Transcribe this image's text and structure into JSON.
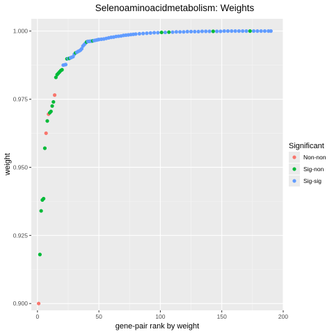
{
  "chart_data": {
    "type": "scatter",
    "title": "Selenoaminoacidmetabolism: Weights",
    "xlabel": "gene-pair rank by weight",
    "ylabel": "weight",
    "xlim": [
      -5,
      200
    ],
    "ylim": [
      0.8975,
      1.0045
    ],
    "x_ticks": [
      0,
      50,
      100,
      150,
      200
    ],
    "x_tick_labels": [
      "0",
      "50",
      "100",
      "150",
      "200"
    ],
    "y_ticks": [
      0.9,
      0.925,
      0.95,
      0.975,
      1.0
    ],
    "y_tick_labels": [
      "0.900",
      "0.925",
      "0.950",
      "0.975",
      "1.000"
    ],
    "grid": true,
    "legend": {
      "title": "Significant",
      "position": "right",
      "entries": [
        {
          "label": "Non-non",
          "color": "#F8766D"
        },
        {
          "label": "Sig-non",
          "color": "#00BA38"
        },
        {
          "label": "Sig-sig",
          "color": "#619CFF"
        }
      ]
    },
    "colors": {
      "Non-non": "#F8766D",
      "Sig-non": "#00BA38",
      "Sig-sig": "#619CFF"
    },
    "points": [
      {
        "x": 1,
        "y": 0.9,
        "group": "Non-non"
      },
      {
        "x": 2,
        "y": 0.918,
        "group": "Sig-non"
      },
      {
        "x": 3,
        "y": 0.934,
        "group": "Sig-non"
      },
      {
        "x": 4,
        "y": 0.938,
        "group": "Sig-non"
      },
      {
        "x": 5,
        "y": 0.9385,
        "group": "Sig-non"
      },
      {
        "x": 6,
        "y": 0.957,
        "group": "Sig-non"
      },
      {
        "x": 7,
        "y": 0.9625,
        "group": "Non-non"
      },
      {
        "x": 8,
        "y": 0.967,
        "group": "Sig-non"
      },
      {
        "x": 9,
        "y": 0.9695,
        "group": "Non-non"
      },
      {
        "x": 10,
        "y": 0.97,
        "group": "Sig-non"
      },
      {
        "x": 11,
        "y": 0.9705,
        "group": "Sig-non"
      },
      {
        "x": 12,
        "y": 0.9725,
        "group": "Sig-non"
      },
      {
        "x": 13,
        "y": 0.974,
        "group": "Sig-non"
      },
      {
        "x": 14,
        "y": 0.9765,
        "group": "Non-non"
      },
      {
        "x": 15,
        "y": 0.983,
        "group": "Sig-non"
      },
      {
        "x": 16,
        "y": 0.984,
        "group": "Sig-non"
      },
      {
        "x": 17,
        "y": 0.9845,
        "group": "Sig-non"
      },
      {
        "x": 18,
        "y": 0.985,
        "group": "Sig-non"
      },
      {
        "x": 19,
        "y": 0.9855,
        "group": "Sig-non"
      },
      {
        "x": 20,
        "y": 0.9858,
        "group": "Sig-non"
      },
      {
        "x": 21,
        "y": 0.9875,
        "group": "Sig-sig"
      },
      {
        "x": 22,
        "y": 0.9876,
        "group": "Sig-sig"
      },
      {
        "x": 23,
        "y": 0.9877,
        "group": "Sig-sig"
      },
      {
        "x": 24,
        "y": 0.9898,
        "group": "Sig-non"
      },
      {
        "x": 25,
        "y": 0.9899,
        "group": "Sig-sig"
      },
      {
        "x": 26,
        "y": 0.99,
        "group": "Sig-non"
      },
      {
        "x": 27,
        "y": 0.9902,
        "group": "Sig-sig"
      },
      {
        "x": 28,
        "y": 0.9904,
        "group": "Sig-sig"
      },
      {
        "x": 29,
        "y": 0.9906,
        "group": "Sig-sig"
      },
      {
        "x": 30,
        "y": 0.9915,
        "group": "Sig-sig"
      },
      {
        "x": 31,
        "y": 0.992,
        "group": "Sig-non"
      },
      {
        "x": 32,
        "y": 0.9922,
        "group": "Sig-sig"
      },
      {
        "x": 33,
        "y": 0.9925,
        "group": "Sig-sig"
      },
      {
        "x": 34,
        "y": 0.9927,
        "group": "Sig-sig"
      },
      {
        "x": 35,
        "y": 0.993,
        "group": "Sig-sig"
      },
      {
        "x": 36,
        "y": 0.9935,
        "group": "Sig-sig"
      },
      {
        "x": 37,
        "y": 0.9945,
        "group": "Sig-sig"
      },
      {
        "x": 38,
        "y": 0.995,
        "group": "Sig-sig"
      },
      {
        "x": 39,
        "y": 0.9955,
        "group": "Sig-sig"
      },
      {
        "x": 40,
        "y": 0.996,
        "group": "Sig-non"
      },
      {
        "x": 41,
        "y": 0.9962,
        "group": "Sig-sig"
      },
      {
        "x": 42,
        "y": 0.9962,
        "group": "Sig-sig"
      },
      {
        "x": 43,
        "y": 0.9963,
        "group": "Sig-sig"
      },
      {
        "x": 44,
        "y": 0.9963,
        "group": "Sig-sig"
      },
      {
        "x": 45,
        "y": 0.9964,
        "group": "Sig-non"
      },
      {
        "x": 46,
        "y": 0.9965,
        "group": "Sig-sig"
      },
      {
        "x": 47,
        "y": 0.9966,
        "group": "Sig-sig"
      },
      {
        "x": 48,
        "y": 0.9967,
        "group": "Sig-sig"
      },
      {
        "x": 49,
        "y": 0.9968,
        "group": "Sig-sig"
      },
      {
        "x": 50,
        "y": 0.9969,
        "group": "Sig-sig"
      },
      {
        "x": 52,
        "y": 0.997,
        "group": "Sig-sig"
      },
      {
        "x": 54,
        "y": 0.9971,
        "group": "Sig-sig"
      },
      {
        "x": 56,
        "y": 0.9973,
        "group": "Sig-sig"
      },
      {
        "x": 58,
        "y": 0.9975,
        "group": "Sig-sig"
      },
      {
        "x": 60,
        "y": 0.9977,
        "group": "Sig-sig"
      },
      {
        "x": 62,
        "y": 0.9978,
        "group": "Sig-sig"
      },
      {
        "x": 64,
        "y": 0.998,
        "group": "Sig-sig"
      },
      {
        "x": 66,
        "y": 0.9981,
        "group": "Sig-sig"
      },
      {
        "x": 68,
        "y": 0.9982,
        "group": "Sig-sig"
      },
      {
        "x": 70,
        "y": 0.9984,
        "group": "Sig-sig"
      },
      {
        "x": 72,
        "y": 0.9985,
        "group": "Sig-sig"
      },
      {
        "x": 74,
        "y": 0.9986,
        "group": "Sig-sig"
      },
      {
        "x": 76,
        "y": 0.9987,
        "group": "Sig-sig"
      },
      {
        "x": 78,
        "y": 0.9988,
        "group": "Sig-sig"
      },
      {
        "x": 80,
        "y": 0.9989,
        "group": "Sig-sig"
      },
      {
        "x": 83,
        "y": 0.999,
        "group": "Sig-sig"
      },
      {
        "x": 86,
        "y": 0.9991,
        "group": "Sig-sig"
      },
      {
        "x": 89,
        "y": 0.9992,
        "group": "Sig-sig"
      },
      {
        "x": 92,
        "y": 0.9993,
        "group": "Sig-sig"
      },
      {
        "x": 95,
        "y": 0.9994,
        "group": "Sig-sig"
      },
      {
        "x": 98,
        "y": 0.9994,
        "group": "Sig-sig"
      },
      {
        "x": 101,
        "y": 0.9995,
        "group": "Sig-non"
      },
      {
        "x": 104,
        "y": 0.9995,
        "group": "Sig-sig"
      },
      {
        "x": 107,
        "y": 0.9996,
        "group": "Sig-non"
      },
      {
        "x": 110,
        "y": 0.9996,
        "group": "Sig-sig"
      },
      {
        "x": 113,
        "y": 0.9997,
        "group": "Sig-sig"
      },
      {
        "x": 116,
        "y": 0.9997,
        "group": "Sig-sig"
      },
      {
        "x": 119,
        "y": 0.9997,
        "group": "Sig-sig"
      },
      {
        "x": 122,
        "y": 0.9998,
        "group": "Sig-sig"
      },
      {
        "x": 125,
        "y": 0.9998,
        "group": "Sig-sig"
      },
      {
        "x": 128,
        "y": 0.9998,
        "group": "Sig-sig"
      },
      {
        "x": 131,
        "y": 0.9998,
        "group": "Sig-sig"
      },
      {
        "x": 134,
        "y": 0.9999,
        "group": "Sig-sig"
      },
      {
        "x": 137,
        "y": 0.9999,
        "group": "Sig-sig"
      },
      {
        "x": 140,
        "y": 0.9999,
        "group": "Sig-sig"
      },
      {
        "x": 143,
        "y": 0.9999,
        "group": "Sig-non"
      },
      {
        "x": 146,
        "y": 0.9999,
        "group": "Sig-sig"
      },
      {
        "x": 149,
        "y": 0.9999,
        "group": "Sig-sig"
      },
      {
        "x": 152,
        "y": 1.0,
        "group": "Sig-sig"
      },
      {
        "x": 155,
        "y": 1.0,
        "group": "Sig-sig"
      },
      {
        "x": 158,
        "y": 1.0,
        "group": "Sig-sig"
      },
      {
        "x": 161,
        "y": 1.0,
        "group": "Sig-sig"
      },
      {
        "x": 164,
        "y": 1.0,
        "group": "Sig-sig"
      },
      {
        "x": 167,
        "y": 1.0,
        "group": "Sig-sig"
      },
      {
        "x": 170,
        "y": 1.0,
        "group": "Sig-sig"
      },
      {
        "x": 173,
        "y": 1.0,
        "group": "Sig-non"
      },
      {
        "x": 176,
        "y": 1.0,
        "group": "Sig-sig"
      },
      {
        "x": 179,
        "y": 1.0,
        "group": "Sig-sig"
      },
      {
        "x": 182,
        "y": 1.0,
        "group": "Sig-sig"
      },
      {
        "x": 185,
        "y": 1.0,
        "group": "Sig-sig"
      },
      {
        "x": 188,
        "y": 1.0,
        "group": "Sig-sig"
      },
      {
        "x": 190,
        "y": 1.0,
        "group": "Sig-sig"
      }
    ]
  }
}
